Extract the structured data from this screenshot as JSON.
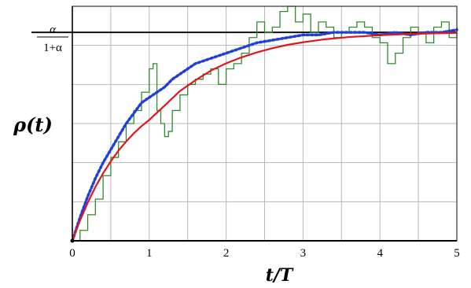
{
  "chart_data": {
    "type": "line",
    "xlabel": "t/T",
    "ylabel": "ρ(t)",
    "xlim": [
      0,
      5
    ],
    "x_ticks": [
      "0",
      "1",
      "2",
      "3",
      "4",
      "5"
    ],
    "grid": true,
    "asymptote": {
      "label_numerator": "α",
      "label_denominator": "1+α",
      "value": 0.8
    },
    "series": [
      {
        "style": "stepped-noisy",
        "color": "#2e8b2e",
        "x": [
          0,
          0.1,
          0.2,
          0.3,
          0.4,
          0.5,
          0.6,
          0.7,
          0.8,
          0.9,
          1.0,
          1.05,
          1.1,
          1.15,
          1.2,
          1.25,
          1.3,
          1.4,
          1.5,
          1.6,
          1.7,
          1.8,
          1.9,
          2.0,
          2.1,
          2.2,
          2.3,
          2.4,
          2.5,
          2.6,
          2.7,
          2.8,
          2.9,
          3.0,
          3.1,
          3.2,
          3.3,
          3.4,
          3.5,
          3.6,
          3.7,
          3.8,
          3.9,
          4.0,
          4.1,
          4.2,
          4.3,
          4.4,
          4.5,
          4.6,
          4.7,
          4.8,
          4.9,
          5.0
        ],
        "values": [
          0,
          0.04,
          0.1,
          0.16,
          0.25,
          0.32,
          0.38,
          0.45,
          0.5,
          0.57,
          0.66,
          0.68,
          0.5,
          0.45,
          0.4,
          0.42,
          0.5,
          0.56,
          0.6,
          0.62,
          0.64,
          0.66,
          0.6,
          0.66,
          0.68,
          0.72,
          0.78,
          0.84,
          0.8,
          0.82,
          0.88,
          0.9,
          0.84,
          0.87,
          0.8,
          0.84,
          0.82,
          0.78,
          0.8,
          0.82,
          0.84,
          0.82,
          0.78,
          0.76,
          0.68,
          0.72,
          0.78,
          0.82,
          0.8,
          0.76,
          0.82,
          0.84,
          0.78,
          0.82
        ]
      },
      {
        "style": "dotted",
        "color": "#1f3fd6",
        "x": [
          0,
          0.1,
          0.2,
          0.3,
          0.4,
          0.5,
          0.6,
          0.7,
          0.8,
          0.9,
          1.0,
          1.1,
          1.2,
          1.3,
          1.4,
          1.5,
          1.6,
          1.7,
          1.8,
          1.9,
          2.0,
          2.2,
          2.4,
          2.6,
          2.8,
          3.0,
          3.2,
          3.4,
          3.6,
          3.8,
          4.0,
          4.2,
          4.4,
          4.6,
          4.8,
          5.0
        ],
        "values": [
          0,
          0.09,
          0.17,
          0.24,
          0.3,
          0.35,
          0.4,
          0.45,
          0.49,
          0.53,
          0.55,
          0.57,
          0.59,
          0.62,
          0.64,
          0.66,
          0.68,
          0.69,
          0.7,
          0.71,
          0.72,
          0.74,
          0.76,
          0.77,
          0.78,
          0.79,
          0.79,
          0.8,
          0.8,
          0.8,
          0.79,
          0.8,
          0.79,
          0.8,
          0.8,
          0.81
        ]
      },
      {
        "style": "solid",
        "color": "#e0161b",
        "x": [
          0,
          0.1,
          0.2,
          0.3,
          0.4,
          0.5,
          0.6,
          0.7,
          0.8,
          0.9,
          1.0,
          1.2,
          1.4,
          1.6,
          1.8,
          2.0,
          2.2,
          2.4,
          2.6,
          2.8,
          3.0,
          3.3,
          3.6,
          4.0,
          4.4,
          4.8,
          5.0
        ],
        "values": [
          0,
          0.078,
          0.146,
          0.207,
          0.259,
          0.305,
          0.346,
          0.381,
          0.413,
          0.44,
          0.464,
          0.519,
          0.575,
          0.616,
          0.653,
          0.681,
          0.704,
          0.723,
          0.739,
          0.752,
          0.762,
          0.774,
          0.782,
          0.789,
          0.794,
          0.797,
          0.798
        ]
      }
    ]
  }
}
